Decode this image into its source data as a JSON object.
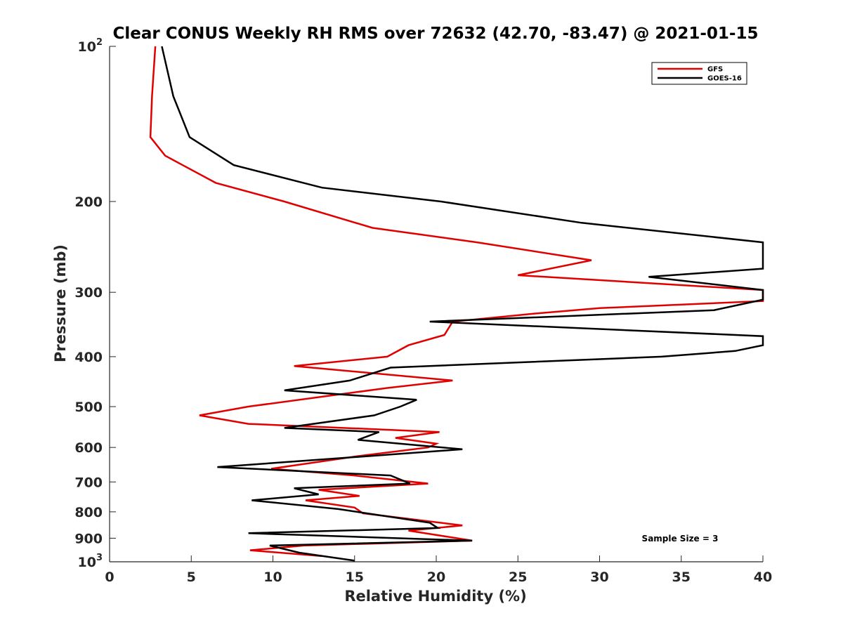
{
  "chart_data": {
    "type": "line",
    "title": "Clear CONUS Weekly RH RMS over 72632 (42.70, -83.47) @ 2021-01-15",
    "xlabel": "Relative Humidity (%)",
    "ylabel": "Pressure (mb)",
    "xlim": [
      0,
      40
    ],
    "ylim": [
      100,
      1000
    ],
    "y_scale": "log",
    "y_direction": "reversed",
    "x_ticks": [
      "0",
      "5",
      "10",
      "15",
      "20",
      "25",
      "30",
      "35",
      "40"
    ],
    "y_ticks": [
      {
        "value": 100,
        "base": "10",
        "exp": "2"
      },
      {
        "value": 200,
        "base": "200",
        "exp": ""
      },
      {
        "value": 300,
        "base": "300",
        "exp": ""
      },
      {
        "value": 400,
        "base": "400",
        "exp": ""
      },
      {
        "value": 500,
        "base": "500",
        "exp": ""
      },
      {
        "value": 600,
        "base": "600",
        "exp": ""
      },
      {
        "value": 700,
        "base": "700",
        "exp": ""
      },
      {
        "value": 800,
        "base": "800",
        "exp": ""
      },
      {
        "value": 900,
        "base": "900",
        "exp": ""
      },
      {
        "value": 1000,
        "base": "10",
        "exp": "3"
      }
    ],
    "grid": false,
    "legend": "top-right",
    "annotation": "Sample Size = 3",
    "series": [
      {
        "name": "GFS",
        "color": "#e00000",
        "points": [
          [
            2.8,
            100
          ],
          [
            2.6,
            125
          ],
          [
            2.5,
            150
          ],
          [
            3.4,
            163
          ],
          [
            6.5,
            184
          ],
          [
            10.7,
            200
          ],
          [
            16.1,
            225
          ],
          [
            22.5,
            240
          ],
          [
            29.5,
            260
          ],
          [
            25.0,
            278
          ],
          [
            40.0,
            297
          ],
          [
            40.0,
            312
          ],
          [
            30.0,
            322
          ],
          [
            26.0,
            330
          ],
          [
            21.0,
            342
          ],
          [
            20.5,
            363
          ],
          [
            18.3,
            380
          ],
          [
            17.0,
            400
          ],
          [
            11.3,
            417
          ],
          [
            21.0,
            445
          ],
          [
            17.0,
            460
          ],
          [
            8.5,
            500
          ],
          [
            5.5,
            520
          ],
          [
            8.5,
            540
          ],
          [
            20.2,
            560
          ],
          [
            17.5,
            575
          ],
          [
            20.0,
            590
          ],
          [
            19.5,
            600
          ],
          [
            15.0,
            625
          ],
          [
            9.9,
            660
          ],
          [
            15.0,
            680
          ],
          [
            19.5,
            705
          ],
          [
            12.8,
            725
          ],
          [
            15.3,
            745
          ],
          [
            12.0,
            760
          ],
          [
            15.0,
            785
          ],
          [
            15.5,
            805
          ],
          [
            21.6,
            850
          ],
          [
            18.3,
            870
          ],
          [
            22.2,
            910
          ],
          [
            11.9,
            930
          ],
          [
            8.6,
            950
          ],
          [
            13.0,
            975
          ]
        ]
      },
      {
        "name": "GOES-16",
        "color": "#000000",
        "points": [
          [
            3.2,
            100
          ],
          [
            3.9,
            125
          ],
          [
            4.9,
            150
          ],
          [
            7.6,
            170
          ],
          [
            13.0,
            188
          ],
          [
            20.3,
            200
          ],
          [
            28.9,
            220
          ],
          [
            40.0,
            240
          ],
          [
            40.0,
            270
          ],
          [
            33.0,
            280
          ],
          [
            40.0,
            297
          ],
          [
            40.0,
            310
          ],
          [
            37.0,
            325
          ],
          [
            19.6,
            342
          ],
          [
            40.0,
            365
          ],
          [
            40.0,
            380
          ],
          [
            38.3,
            390
          ],
          [
            33.8,
            400
          ],
          [
            17.2,
            420
          ],
          [
            14.7,
            445
          ],
          [
            10.7,
            465
          ],
          [
            18.8,
            485
          ],
          [
            17.8,
            500
          ],
          [
            16.2,
            520
          ],
          [
            10.7,
            550
          ],
          [
            16.5,
            560
          ],
          [
            15.2,
            580
          ],
          [
            21.6,
            605
          ],
          [
            6.6,
            655
          ],
          [
            17.2,
            680
          ],
          [
            18.4,
            705
          ],
          [
            11.3,
            720
          ],
          [
            12.8,
            740
          ],
          [
            8.7,
            760
          ],
          [
            14.0,
            790
          ],
          [
            19.6,
            840
          ],
          [
            20.1,
            860
          ],
          [
            8.5,
            880
          ],
          [
            22.2,
            910
          ],
          [
            9.8,
            930
          ],
          [
            11.6,
            960
          ],
          [
            15.0,
            995
          ]
        ]
      }
    ]
  }
}
